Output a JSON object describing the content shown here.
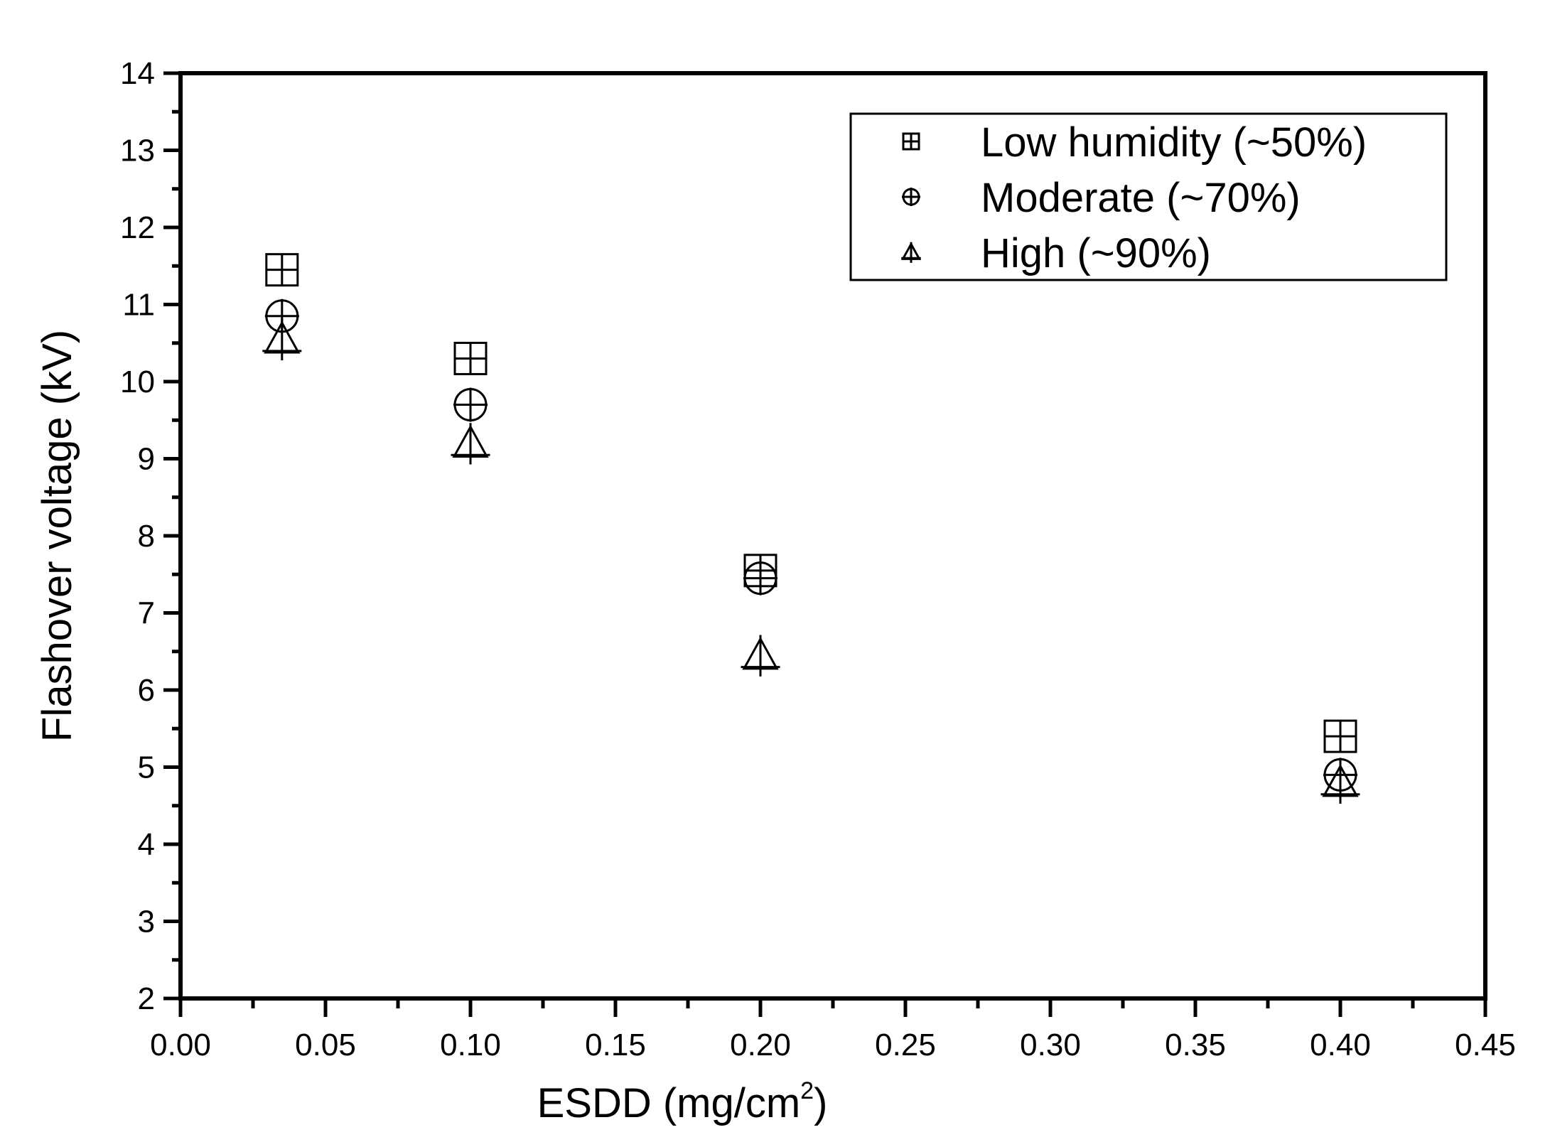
{
  "chart_data": {
    "type": "scatter",
    "title": "",
    "xlabel": "ESDD (mg/cm",
    "xlabel_superscript": "2",
    "xlabel_suffix": ")",
    "ylabel": "Flashover voltage (kV)",
    "xlim": [
      0.0,
      0.45
    ],
    "ylim": [
      2,
      14
    ],
    "x_ticks": [
      "0.00",
      "0.05",
      "0.10",
      "0.15",
      "0.20",
      "0.25",
      "0.30",
      "0.35",
      "0.40",
      "0.45"
    ],
    "y_ticks": [
      "2",
      "3",
      "4",
      "5",
      "6",
      "7",
      "8",
      "9",
      "10",
      "11",
      "12",
      "13",
      "14"
    ],
    "grid": false,
    "legend_position": "top-right",
    "series": [
      {
        "name": "Low humidity (~50%)",
        "marker": "square-cross",
        "x": [
          0.035,
          0.1,
          0.2,
          0.4
        ],
        "y": [
          11.45,
          10.3,
          7.55,
          5.4
        ]
      },
      {
        "name": "Moderate (~70%)",
        "marker": "circle-cross",
        "x": [
          0.035,
          0.1,
          0.2,
          0.4
        ],
        "y": [
          10.85,
          9.7,
          7.45,
          4.9
        ]
      },
      {
        "name": "High (~90%)",
        "marker": "triangle-cross",
        "x": [
          0.035,
          0.1,
          0.2,
          0.4
        ],
        "y": [
          10.55,
          9.2,
          6.45,
          4.8
        ]
      }
    ]
  }
}
